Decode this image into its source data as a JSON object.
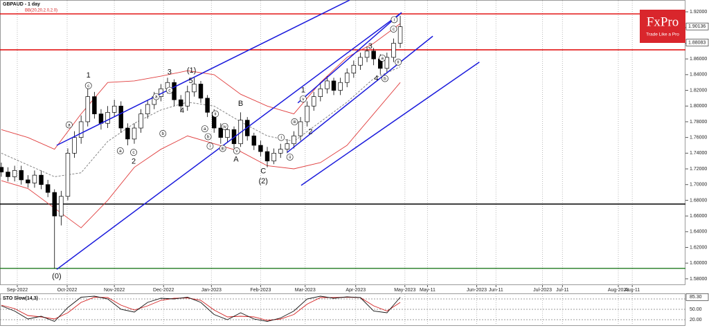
{
  "chart_data": {
    "type": "candlestick",
    "title": "GBPAUD - 1 day",
    "indicator": "BB(20,20,2.0,2.0)",
    "xlim": [
      -0.2,
      102.9
    ],
    "xticks": [
      {
        "value": 2.4,
        "label": "Sep-2022"
      },
      {
        "value": 9.9,
        "label": "Oct-2022"
      },
      {
        "value": 17.0,
        "label": "Nov-2022"
      },
      {
        "value": 24.4,
        "label": "Dec-2022"
      },
      {
        "value": 31.6,
        "label": "Jan-2023"
      },
      {
        "value": 39.0,
        "label": "Feb-2023"
      },
      {
        "value": 45.7,
        "label": "Mar-2023"
      },
      {
        "value": 53.3,
        "label": "Apr-2023"
      },
      {
        "value": 60.7,
        "label": "May-2023"
      },
      {
        "value": 64.1,
        "label": "May-11"
      },
      {
        "value": 71.5,
        "label": "Jun-2023"
      },
      {
        "value": 74.4,
        "label": "Jun-11"
      },
      {
        "value": 81.4,
        "label": "Jul-2023"
      },
      {
        "value": 84.4,
        "label": "Jul-11"
      },
      {
        "value": 92.8,
        "label": "Aug-2023"
      },
      {
        "value": 94.9,
        "label": "Aug-11"
      }
    ],
    "grid": "x",
    "ylim": [
      1.572,
      1.928
    ],
    "yticks": [
      {
        "value": 1.92,
        "label": "1.92000"
      },
      {
        "value": 1.9,
        "label": "1.90000"
      },
      {
        "value": 1.88,
        "label": "1.88000"
      },
      {
        "value": 1.86,
        "label": "1.86000"
      },
      {
        "value": 1.84,
        "label": "1.84000"
      },
      {
        "value": 1.82,
        "label": "1.82000"
      },
      {
        "value": 1.8,
        "label": "1.80000"
      },
      {
        "value": 1.78,
        "label": "1.78000"
      },
      {
        "value": 1.76,
        "label": "1.76000"
      },
      {
        "value": 1.74,
        "label": "1.74000"
      },
      {
        "value": 1.72,
        "label": "1.72000"
      },
      {
        "value": 1.7,
        "label": "1.70000"
      },
      {
        "value": 1.68,
        "label": "1.68000"
      },
      {
        "value": 1.66,
        "label": "1.66000"
      },
      {
        "value": 1.64,
        "label": "1.64000"
      },
      {
        "value": 1.62,
        "label": "1.62000"
      },
      {
        "value": 1.6,
        "label": "1.60000"
      },
      {
        "value": 1.58,
        "label": "1.58000"
      }
    ],
    "open": [
      1.722,
      1.716,
      1.71,
      1.718,
      1.706,
      1.702,
      1.712,
      1.7,
      1.69,
      1.66,
      1.685,
      1.74,
      1.76,
      1.78,
      1.812,
      1.79,
      1.778,
      1.792,
      1.8,
      1.772,
      1.758,
      1.772,
      1.79,
      1.802,
      1.812,
      1.822,
      1.83,
      1.808,
      1.8,
      1.818,
      1.828,
      1.81,
      1.792,
      1.772,
      1.76,
      1.77,
      1.752,
      1.782,
      1.762,
      1.75,
      1.742,
      1.73,
      1.74,
      1.745,
      1.752,
      1.762,
      1.78,
      1.8,
      1.812,
      1.822,
      1.832,
      1.82,
      1.83,
      1.842,
      1.852,
      1.862,
      1.87,
      1.86,
      1.848,
      1.862,
      1.88
    ],
    "high": [
      1.728,
      1.722,
      1.724,
      1.724,
      1.712,
      1.718,
      1.718,
      1.706,
      1.694,
      1.692,
      1.746,
      1.768,
      1.788,
      1.822,
      1.818,
      1.796,
      1.8,
      1.808,
      1.806,
      1.778,
      1.778,
      1.796,
      1.808,
      1.818,
      1.828,
      1.836,
      1.834,
      1.814,
      1.826,
      1.836,
      1.832,
      1.814,
      1.796,
      1.778,
      1.776,
      1.774,
      1.792,
      1.786,
      1.766,
      1.756,
      1.748,
      1.746,
      1.752,
      1.758,
      1.768,
      1.786,
      1.806,
      1.818,
      1.83,
      1.838,
      1.836,
      1.836,
      1.848,
      1.858,
      1.868,
      1.876,
      1.874,
      1.866,
      1.868,
      1.886,
      1.915
    ],
    "low": [
      1.71,
      1.704,
      1.704,
      1.7,
      1.696,
      1.696,
      1.694,
      1.684,
      1.593,
      1.648,
      1.68,
      1.734,
      1.752,
      1.774,
      1.784,
      1.77,
      1.772,
      1.786,
      1.766,
      1.75,
      1.752,
      1.766,
      1.784,
      1.796,
      1.806,
      1.816,
      1.8,
      1.792,
      1.794,
      1.812,
      1.804,
      1.786,
      1.766,
      1.752,
      1.754,
      1.746,
      1.748,
      1.756,
      1.744,
      1.736,
      1.722,
      1.726,
      1.734,
      1.74,
      1.746,
      1.756,
      1.774,
      1.794,
      1.806,
      1.816,
      1.814,
      1.814,
      1.824,
      1.836,
      1.846,
      1.856,
      1.852,
      1.84,
      1.842,
      1.856,
      1.874
    ],
    "close": [
      1.716,
      1.71,
      1.718,
      1.706,
      1.702,
      1.712,
      1.7,
      1.69,
      1.66,
      1.685,
      1.74,
      1.76,
      1.78,
      1.812,
      1.79,
      1.778,
      1.792,
      1.8,
      1.772,
      1.758,
      1.772,
      1.79,
      1.802,
      1.812,
      1.822,
      1.83,
      1.808,
      1.8,
      1.818,
      1.828,
      1.81,
      1.792,
      1.772,
      1.76,
      1.77,
      1.752,
      1.782,
      1.762,
      1.75,
      1.742,
      1.73,
      1.74,
      1.745,
      1.752,
      1.762,
      1.78,
      1.8,
      1.812,
      1.822,
      1.832,
      1.82,
      1.83,
      1.842,
      1.852,
      1.862,
      1.87,
      1.86,
      1.848,
      1.862,
      1.88,
      1.901
    ],
    "up_color": "#ffffff",
    "down_color": "#000000",
    "bollinger": {
      "x": [
        0,
        4,
        8,
        12,
        16,
        20,
        24,
        28,
        32,
        36,
        40,
        44,
        48,
        52,
        56,
        60
      ],
      "upper": [
        1.77,
        1.76,
        1.745,
        1.79,
        1.83,
        1.832,
        1.838,
        1.845,
        1.84,
        1.815,
        1.8,
        1.79,
        1.83,
        1.862,
        1.88,
        1.905
      ],
      "middle": [
        1.74,
        1.725,
        1.71,
        1.715,
        1.755,
        1.778,
        1.795,
        1.805,
        1.8,
        1.78,
        1.762,
        1.755,
        1.78,
        1.805,
        1.835,
        1.85
      ],
      "lower": [
        1.705,
        1.695,
        1.67,
        1.645,
        1.68,
        1.722,
        1.745,
        1.762,
        1.752,
        1.742,
        1.724,
        1.72,
        1.728,
        1.75,
        1.79,
        1.83
      ],
      "band_color": "#e03c3c",
      "middle_color": "#777777"
    },
    "levels": [
      {
        "value": 1.9174,
        "color": "#e00000"
      },
      {
        "value": 1.8716,
        "color": "#e00000"
      },
      {
        "value": 1.6752,
        "color": "#000000"
      },
      {
        "value": 1.5933,
        "color": "#1f7a1f"
      }
    ],
    "price_tags": [
      1.90136,
      1.88083
    ],
    "trendlines": {
      "color": "#1a1adc",
      "lines": [
        {
          "x": [
            8.33,
            60.2
          ],
          "y": [
            1.592,
            1.919
          ]
        },
        {
          "x": [
            8.33,
            52.4
          ],
          "y": [
            1.75,
            1.935
          ]
        },
        {
          "x": [
            43.0,
            64.9
          ],
          "y": [
            1.741,
            1.889
          ]
        },
        {
          "x": [
            45.1,
            71.9
          ],
          "y": [
            1.699,
            1.856
          ]
        },
        {
          "x": [
            44.6,
            60.2
          ],
          "y": [
            1.804,
            1.919
          ]
        }
      ]
    },
    "waves": [
      {
        "label": "(0)",
        "at": [
          8.33,
          1.583
        ]
      },
      {
        "label": "1",
        "at": [
          13.1,
          1.839
        ]
      },
      {
        "label": "c",
        "at": [
          13.1,
          1.826
        ],
        "circled": true
      },
      {
        "label": "a",
        "at": [
          10.2,
          1.776
        ],
        "circled": true
      },
      {
        "label": "a",
        "at": [
          17.9,
          1.743
        ],
        "circled": true
      },
      {
        "label": "c",
        "at": [
          19.9,
          1.741
        ],
        "circled": true
      },
      {
        "label": "2",
        "at": [
          19.9,
          1.729
        ]
      },
      {
        "label": "a",
        "at": [
          23.3,
          1.812
        ],
        "circled": true
      },
      {
        "label": "b",
        "at": [
          24.3,
          1.765
        ],
        "circled": true
      },
      {
        "label": "c",
        "at": [
          25.3,
          1.82
        ],
        "circled": true
      },
      {
        "label": "3",
        "at": [
          25.3,
          1.843
        ]
      },
      {
        "label": "4",
        "at": [
          27.2,
          1.794
        ]
      },
      {
        "label": "5",
        "at": [
          28.5,
          1.832
        ]
      },
      {
        "label": "(1)",
        "at": [
          28.6,
          1.845
        ]
      },
      {
        "label": "a",
        "at": [
          30.6,
          1.771
        ],
        "circled": true
      },
      {
        "label": "b",
        "at": [
          31.1,
          1.761
        ],
        "circled": true
      },
      {
        "label": "i",
        "at": [
          31.4,
          1.749
        ],
        "circled": true
      },
      {
        "label": "ii",
        "at": [
          32.2,
          1.79
        ],
        "circled": true
      },
      {
        "label": "iii",
        "at": [
          33.3,
          1.746
        ],
        "circled": true
      },
      {
        "label": "iv",
        "at": [
          33.6,
          1.774
        ],
        "circled": true
      },
      {
        "label": "v",
        "at": [
          35.4,
          1.743
        ],
        "circled": true
      },
      {
        "label": "A",
        "at": [
          35.3,
          1.732
        ]
      },
      {
        "label": "B",
        "at": [
          36.0,
          1.803
        ]
      },
      {
        "label": "C",
        "at": [
          39.4,
          1.717
        ]
      },
      {
        "label": "(2)",
        "at": [
          39.4,
          1.704
        ]
      },
      {
        "label": "i",
        "at": [
          42.1,
          1.76
        ],
        "circled": true
      },
      {
        "label": "ii",
        "at": [
          43.4,
          1.735
        ],
        "circled": true
      },
      {
        "label": "iii",
        "at": [
          44.1,
          1.78
        ],
        "circled": true
      },
      {
        "label": "v",
        "at": [
          45.4,
          1.809
        ],
        "circled": true
      },
      {
        "label": "1",
        "at": [
          45.4,
          1.82
        ]
      },
      {
        "label": "2",
        "at": [
          46.5,
          1.767
        ]
      },
      {
        "label": "3",
        "at": [
          55.5,
          1.876
        ]
      },
      {
        "label": "4",
        "at": [
          56.4,
          1.835
        ]
      },
      {
        "label": "a",
        "at": [
          57.3,
          1.861
        ],
        "circled": true
      },
      {
        "label": "b",
        "at": [
          57.7,
          1.835
        ],
        "circled": true
      },
      {
        "label": "c",
        "at": [
          59.0,
          1.898
        ],
        "circled": true
      },
      {
        "label": "i",
        "at": [
          59.1,
          1.91
        ],
        "circled": true
      },
      {
        "label": "ii",
        "at": [
          59.7,
          1.856
        ],
        "circled": true
      }
    ],
    "oscillator": {
      "title": "STO Slow(14,3)",
      "ylim": [
        4,
        96
      ],
      "yticks": [
        {
          "value": 80,
          "label": "80.00"
        },
        {
          "value": 50,
          "label": "50.00"
        },
        {
          "value": 20,
          "label": "20.00"
        }
      ],
      "current": {
        "value": 85.3,
        "label": "85.30"
      },
      "x": [
        0,
        2,
        4,
        6,
        8,
        10,
        12,
        14,
        16,
        18,
        20,
        22,
        24,
        26,
        28,
        30,
        32,
        34,
        36,
        38,
        40,
        42,
        44,
        46,
        48,
        50,
        52,
        54,
        56,
        58,
        60
      ],
      "k": [
        60,
        45,
        22,
        30,
        15,
        55,
        85,
        88,
        80,
        50,
        42,
        70,
        82,
        80,
        85,
        70,
        35,
        20,
        40,
        22,
        15,
        25,
        45,
        80,
        88,
        82,
        86,
        84,
        45,
        40,
        85
      ],
      "d": [
        62,
        52,
        32,
        28,
        22,
        40,
        70,
        85,
        84,
        62,
        48,
        60,
        76,
        82,
        83,
        76,
        48,
        28,
        30,
        28,
        18,
        22,
        35,
        65,
        84,
        84,
        85,
        84,
        60,
        45,
        70
      ],
      "k_color": "#111111",
      "d_color": "#d42020"
    }
  },
  "logo": {
    "name": "FxPro",
    "tagline": "Trade Like a Pro"
  }
}
